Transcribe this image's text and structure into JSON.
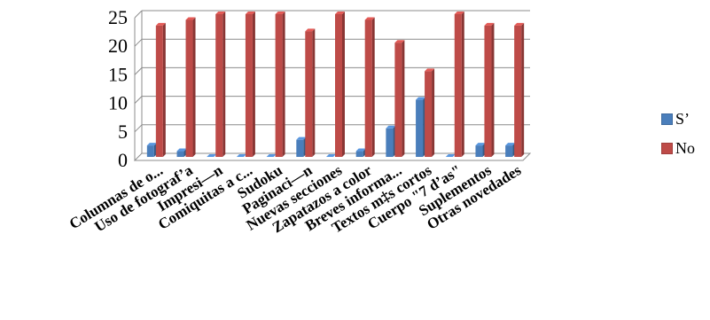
{
  "chart_data": {
    "type": "bar",
    "title": "",
    "xlabel": "",
    "ylabel": "",
    "ylim": [
      0,
      25
    ],
    "yticks": [
      0,
      5,
      10,
      15,
      20,
      25
    ],
    "grid": true,
    "legend_position": "right",
    "categories": [
      "Columnas de o...",
      "Uso de fotograf’a",
      "Impresi—n",
      "Comiquitas a c...",
      "Sudoku",
      "Paginaci—n",
      "Nuevas secciones",
      "Zapatazos a color",
      "Breves informa...",
      "Textos m‡s cortos",
      "Cuerpo \"7 d’as\"",
      "Suplementos",
      "Otras novedades"
    ],
    "series": [
      {
        "name": "S’",
        "color": "#4a7ebb",
        "values": [
          2,
          1,
          0,
          0,
          0,
          3,
          0,
          1,
          5,
          10,
          0,
          2,
          2
        ]
      },
      {
        "name": "No",
        "color": "#be4b48",
        "values": [
          23,
          24,
          25,
          25,
          25,
          22,
          25,
          24,
          20,
          15,
          25,
          23,
          23
        ]
      }
    ]
  }
}
